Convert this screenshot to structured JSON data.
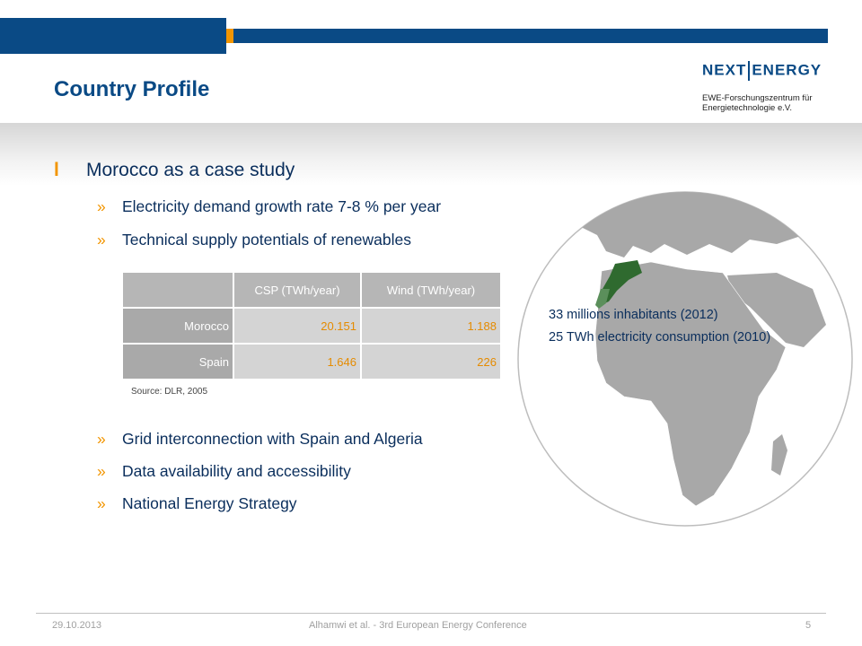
{
  "slide": {
    "title": "Country Profile",
    "logo": {
      "name_left": "NEXT",
      "name_right": "ENERGY",
      "subtitle_line1": "EWE-Forschungszentrum für",
      "subtitle_line2": "Energietechnologie e.V."
    }
  },
  "content": {
    "main_bullet_marker": "l",
    "main_bullet": "Morocco as a case study",
    "sub_marker": "»",
    "sub_bullets_top": [
      "Electricity demand growth rate 7-8 % per year",
      "Technical supply potentials of renewables"
    ],
    "sub_bullets_bottom": [
      "Grid interconnection with Spain and Algeria",
      "Data availability and accessibility",
      "National Energy Strategy"
    ]
  },
  "table": {
    "headers": [
      "",
      "CSP (TWh/year)",
      "Wind (TWh/year)"
    ],
    "rows": [
      {
        "country": "Morocco",
        "csp": "20.151",
        "wind": "1.188"
      },
      {
        "country": "Spain",
        "csp": "1.646",
        "wind": "226"
      }
    ],
    "source": "Source: DLR, 2005"
  },
  "map": {
    "note_line1": "33 millions inhabitants (2012)",
    "note_line2": "25 TWh electricity consumption (2010)",
    "highlight_color": "#2f6a2f",
    "land_color": "#a8a8a8",
    "ocean_color": "#ffffff"
  },
  "footer": {
    "date": "29.10.2013",
    "center": "Alhamwi et al. - 3rd European Energy Conference",
    "page": "5"
  },
  "colors": {
    "brand_blue": "#0a4a85",
    "accent_orange": "#f29500",
    "text_navy": "#0a2e5c"
  }
}
